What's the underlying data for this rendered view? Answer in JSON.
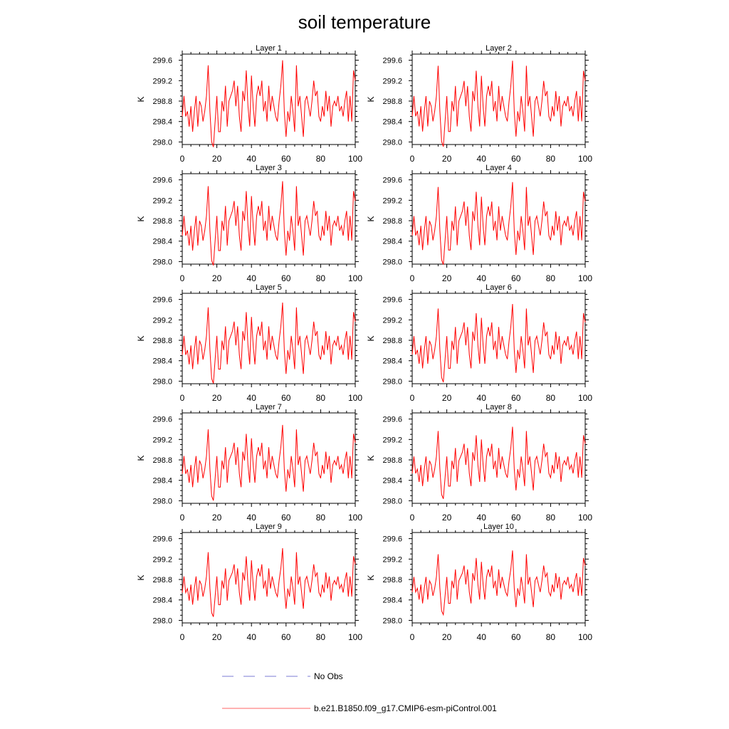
{
  "figure": {
    "title": "soil temperature"
  },
  "chart_data": {
    "type": "line",
    "title": "soil temperature",
    "xlabel": "",
    "ylabel": "K",
    "xlim": [
      0,
      100
    ],
    "ylim": [
      297.95,
      299.72
    ],
    "xticks": [
      0,
      20,
      40,
      60,
      80,
      100
    ],
    "yticks": [
      298.0,
      298.4,
      298.8,
      299.2,
      299.6
    ],
    "ytick_labels": [
      "298.0",
      "298.4",
      "298.8",
      "299.2",
      "299.6"
    ],
    "xtick_labels": [
      "0",
      "20",
      "40",
      "60",
      "80",
      "100"
    ],
    "line_color": "#ff0000",
    "obs_color": "#7b7bd6",
    "legend": [
      {
        "label": "No Obs",
        "style": "dashed",
        "color": "#7b7bd6"
      },
      {
        "label": "b.e21.B1850.f09_g17.CMIP6-esm-piControl.001",
        "style": "solid",
        "color": "#ff0000"
      }
    ],
    "base_series": [
      298.5,
      298.9,
      298.5,
      298.6,
      298.3,
      298.7,
      298.2,
      298.6,
      298.9,
      298.3,
      298.8,
      298.7,
      298.4,
      298.6,
      298.9,
      299.5,
      298.6,
      298.0,
      297.9,
      298.4,
      298.9,
      298.2,
      298.2,
      298.8,
      298.6,
      299.1,
      298.3,
      298.8,
      298.9,
      299.0,
      299.2,
      298.7,
      299.1,
      298.5,
      298.2,
      299.0,
      298.8,
      299.4,
      298.7,
      298.3,
      299.3,
      298.7,
      298.3,
      298.9,
      299.1,
      298.9,
      299.2,
      298.6,
      298.8,
      298.4,
      299.1,
      298.6,
      298.9,
      298.7,
      298.5,
      298.4,
      298.8,
      299.1,
      299.6,
      298.6,
      298.1,
      298.6,
      298.4,
      298.9,
      298.6,
      298.2,
      299.5,
      298.7,
      298.9,
      298.5,
      298.1,
      298.8,
      298.9,
      298.7,
      298.5,
      298.8,
      299.2,
      298.9,
      299.0,
      298.5,
      298.4,
      298.7,
      298.5,
      299.0,
      298.6,
      298.9,
      298.3,
      298.7,
      298.8,
      298.7,
      298.9,
      298.6,
      298.7,
      298.5,
      298.8,
      299.0,
      298.4,
      298.9,
      298.4,
      299.4,
      299.2
    ],
    "panels": [
      {
        "title": "Layer 1",
        "attenuation": 1.0
      },
      {
        "title": "Layer 2",
        "attenuation": 0.99
      },
      {
        "title": "Layer 3",
        "attenuation": 0.97
      },
      {
        "title": "Layer 4",
        "attenuation": 0.95
      },
      {
        "title": "Layer 5",
        "attenuation": 0.93
      },
      {
        "title": "Layer 6",
        "attenuation": 0.9
      },
      {
        "title": "Layer 7",
        "attenuation": 0.87
      },
      {
        "title": "Layer 8",
        "attenuation": 0.83
      },
      {
        "title": "Layer 9",
        "attenuation": 0.79
      },
      {
        "title": "Layer 10",
        "attenuation": 0.74
      }
    ]
  }
}
